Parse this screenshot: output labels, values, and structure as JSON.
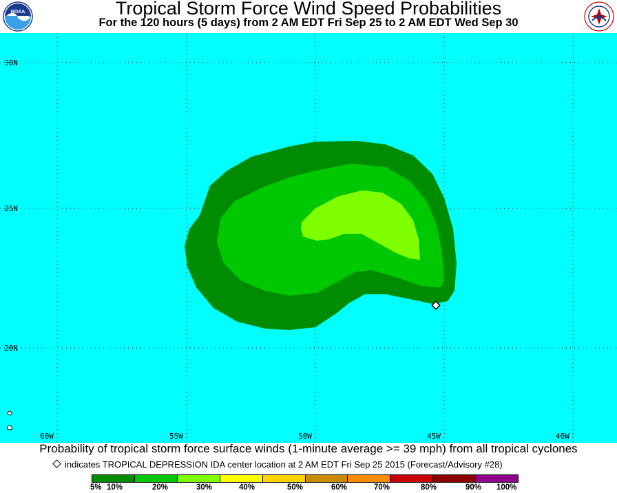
{
  "header": {
    "title": "Tropical Storm Force Wind Speed Probabilities",
    "subtitle": "For the 120 hours (5 days) from 2 AM EDT Fri Sep 25 to 2 AM EDT Wed Sep 30",
    "left_logo": "noaa-logo",
    "right_logo": "national-weather-service-logo"
  },
  "map": {
    "ocean_color": "#00ffff",
    "lat_labels": [
      "30N",
      "25N",
      "20N"
    ],
    "lon_labels": [
      "60W",
      "55W",
      "50W",
      "45W",
      "40W"
    ],
    "storm_center": {
      "lon": -44.9,
      "lat": 21.4
    }
  },
  "captions": {
    "main": "Probability of tropical storm force surface winds (1-minute average >= 39 mph) from all tropical cyclones",
    "storm": "indicates TROPICAL DEPRESSION IDA center location at 2 AM EDT Fri Sep 25 2015 (Forecast/Advisory #28)"
  },
  "legend": {
    "colors": [
      "#008c00",
      "#00c800",
      "#80ff00",
      "#ffff00",
      "#ffd200",
      "#c88c00",
      "#ff8c00",
      "#c80000",
      "#8c0000",
      "#8c008c"
    ],
    "labels": [
      "5%",
      "10%",
      "20%",
      "30%",
      "40%",
      "50%",
      "60%",
      "70%",
      "80%",
      "90%",
      "100%"
    ]
  }
}
